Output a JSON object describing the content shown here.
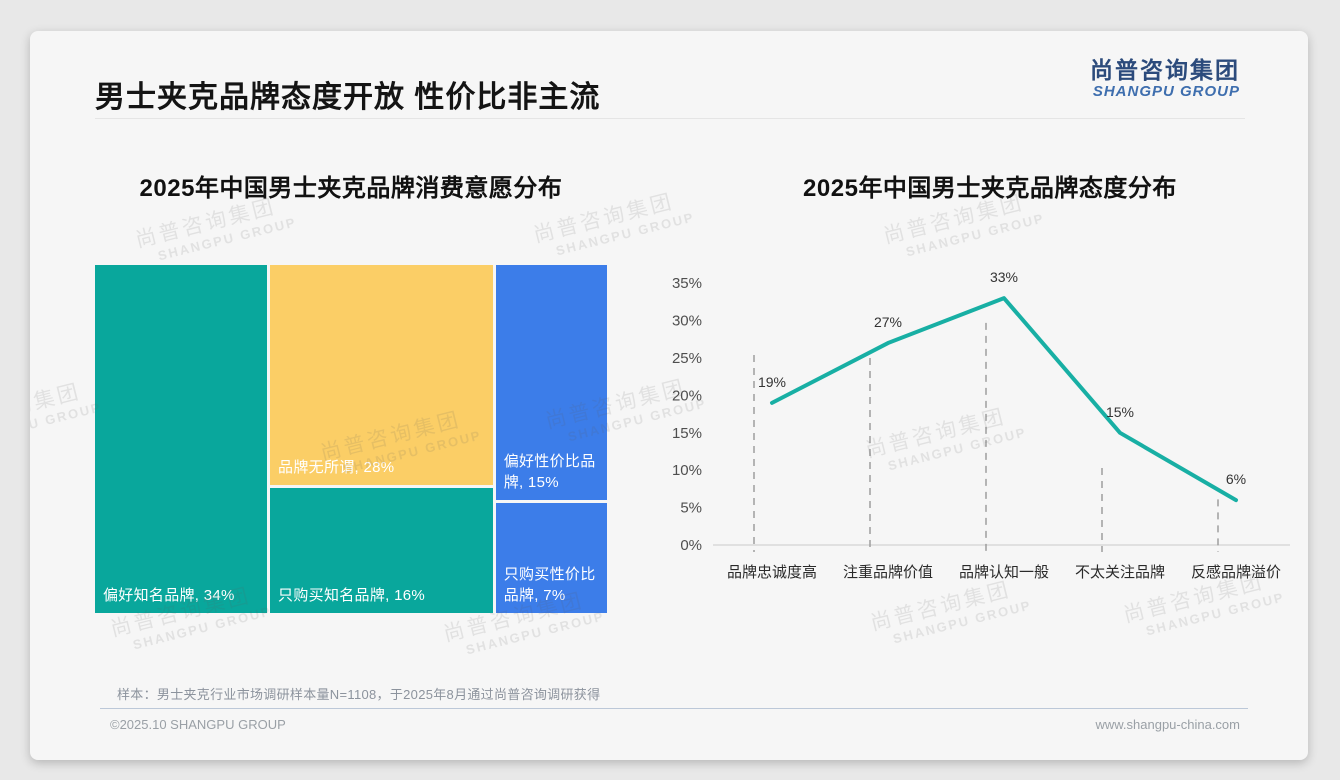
{
  "header": {
    "title": "男士夹克品牌态度开放 性价比非主流"
  },
  "brand": {
    "logo_cn": "尚普咨询集团",
    "logo_en": "SHANGPU GROUP",
    "logo_cn_color": "#2c4b7c",
    "logo_en_color": "#3e6eae"
  },
  "watermark": {
    "line1": "尚普咨询集团",
    "line2": "SHANGPU GROUP"
  },
  "charts": {
    "left_title": "2025年中国男士夹克品牌消费意愿分布",
    "right_title": "2025年中国男士夹克品牌态度分布"
  },
  "chart_data": [
    {
      "type": "treemap",
      "title": "2025年中国男士夹克品牌消费意愿分布",
      "unit": "%",
      "columns": [
        {
          "blocks": [
            {
              "label": "偏好知名品牌",
              "value": 34,
              "color": "#09a79c",
              "text_color": "#ffffff"
            }
          ]
        },
        {
          "blocks": [
            {
              "label": "品牌无所谓",
              "value": 28,
              "color": "#fbce66",
              "text_color": "#ffffff"
            },
            {
              "label": "只购买知名品牌",
              "value": 16,
              "color": "#09a79c",
              "text_color": "#ffffff"
            }
          ]
        },
        {
          "blocks": [
            {
              "label": "偏好性价比品牌",
              "value": 15,
              "color": "#3c7de9",
              "text_color": "#ffffff"
            },
            {
              "label": "只购买性价比品牌",
              "value": 7,
              "color": "#3c7de9",
              "text_color": "#ffffff"
            }
          ]
        }
      ]
    },
    {
      "type": "line",
      "title": "2025年中国男士夹克品牌态度分布",
      "categories": [
        "品牌忠诚度高",
        "注重品牌价值",
        "品牌认知一般",
        "不太关注品牌",
        "反感品牌溢价"
      ],
      "values": [
        19,
        27,
        33,
        15,
        6
      ],
      "point_labels": [
        "19%",
        "27%",
        "33%",
        "15%",
        "6%"
      ],
      "y_ticks": [
        "0%",
        "5%",
        "10%",
        "15%",
        "20%",
        "25%",
        "30%",
        "35%"
      ],
      "ylim": [
        0,
        35
      ],
      "y_step": 5,
      "line_color": "#18afa4",
      "guide_style": "dashed-vertical",
      "guide_line_tops": [
        25.4,
        25.0,
        29.7,
        10.3,
        6.1
      ],
      "legend": "none"
    }
  ],
  "footer": {
    "sample_note": "样本：男士夹克行业市场调研样本量N=1108，于2025年8月通过尚普咨询调研获得",
    "copyright": "©2025.10 SHANGPU GROUP",
    "website": "www.shangpu-china.com"
  }
}
